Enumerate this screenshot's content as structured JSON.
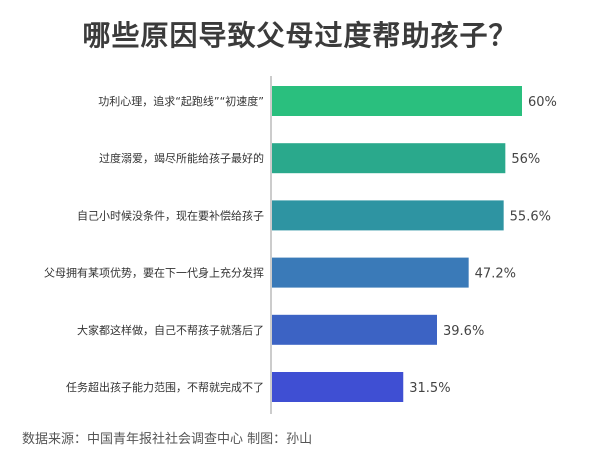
{
  "title": "哪些原因导致父母过度帮助孩子？",
  "source": "数据来源：中国青年报社社会调查中心 制图：孙山",
  "chart_data": {
    "type": "bar",
    "orientation": "horizontal",
    "title": "哪些原因导致父母过度帮助孩子？",
    "categories": [
      "功利心理，追求“起跑线”“初速度”",
      "过度溺爱，竭尽所能给孩子最好的",
      "自己小时候没条件，现在要补偿给孩子",
      "父母拥有某项优势，要在下一代身上充分发挥",
      "大家都这样做，自己不帮孩子就落后了",
      "任务超出孩子能力范围，不帮就完成不了"
    ],
    "values": [
      60,
      56,
      55.6,
      47.2,
      39.6,
      31.5
    ],
    "value_labels": [
      "60%",
      "56%",
      "55.6%",
      "47.2%",
      "39.6%",
      "31.5%"
    ],
    "unit": "%",
    "xlim": [
      0,
      60
    ],
    "grid": false,
    "colors": [
      "#2abf7e",
      "#2aa98c",
      "#2e94a2",
      "#3a7ab8",
      "#3c63c4",
      "#3f4fd3"
    ]
  }
}
